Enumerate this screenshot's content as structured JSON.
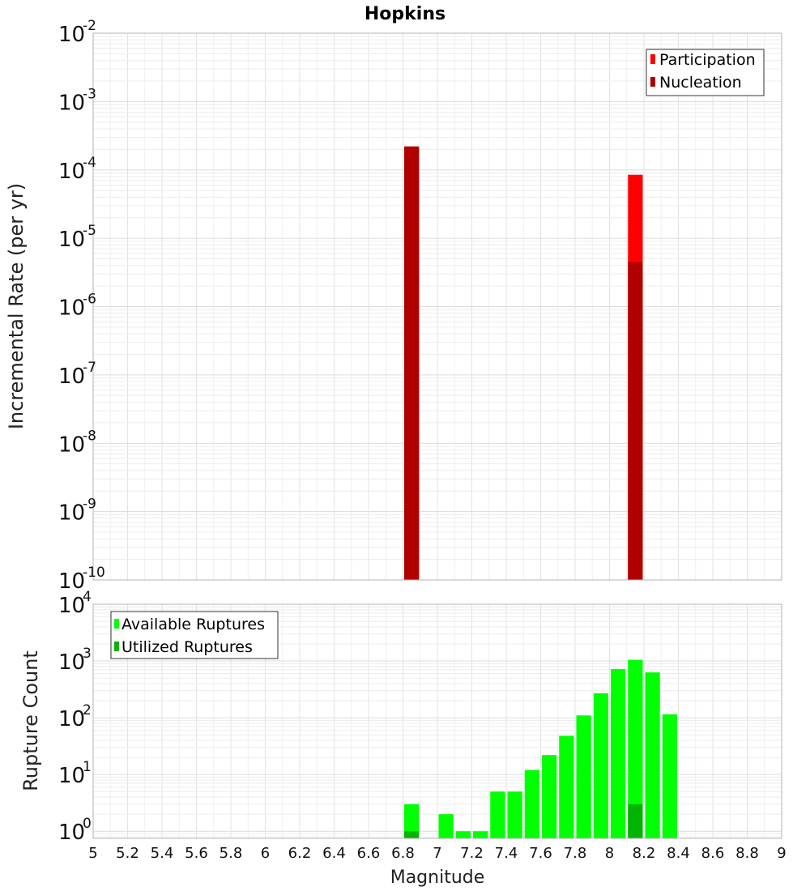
{
  "chart_data": [
    {
      "type": "bar",
      "title": "Hopkins",
      "ylabel": "Incremental Rate (per yr)",
      "xlim": [
        5,
        9
      ],
      "ylim": [
        1e-10,
        0.01
      ],
      "y_scale": "log",
      "grid": true,
      "legend_position": "top-right",
      "bar_width": 0.1,
      "series": [
        {
          "name": "Participation",
          "color": "#ff0000",
          "x": [
            6.85,
            8.15
          ],
          "values": [
            0.00022,
            8.5e-05
          ]
        },
        {
          "name": "Nucleation",
          "color": "#b00000",
          "x": [
            6.85,
            8.15
          ],
          "values": [
            0.00022,
            4.5e-06
          ]
        }
      ]
    },
    {
      "type": "bar",
      "ylabel": "Rupture Count",
      "xlabel": "Magnitude",
      "xlim": [
        5,
        9
      ],
      "ylim": [
        0.75,
        10000
      ],
      "y_scale": "log",
      "grid": true,
      "legend_position": "top-left",
      "bar_width": 0.1,
      "x_ticks": [
        "5",
        "5.2",
        "5.4",
        "5.6",
        "5.8",
        "6",
        "6.2",
        "6.4",
        "6.6",
        "6.8",
        "7",
        "7.2",
        "7.4",
        "7.6",
        "7.8",
        "8",
        "8.2",
        "8.4",
        "8.6",
        "8.8",
        "9"
      ],
      "series": [
        {
          "name": "Available Ruptures",
          "color": "#00ff00",
          "x": [
            6.85,
            7.05,
            7.15,
            7.25,
            7.35,
            7.45,
            7.55,
            7.65,
            7.75,
            7.85,
            7.95,
            8.05,
            8.15,
            8.25,
            8.35
          ],
          "values": [
            3,
            2,
            1,
            1,
            5,
            5,
            12,
            22,
            48,
            110,
            270,
            720,
            1050,
            630,
            115
          ]
        },
        {
          "name": "Utilized Ruptures",
          "color": "#00b400",
          "x": [
            6.85,
            8.15
          ],
          "values": [
            1,
            3
          ]
        }
      ]
    }
  ]
}
